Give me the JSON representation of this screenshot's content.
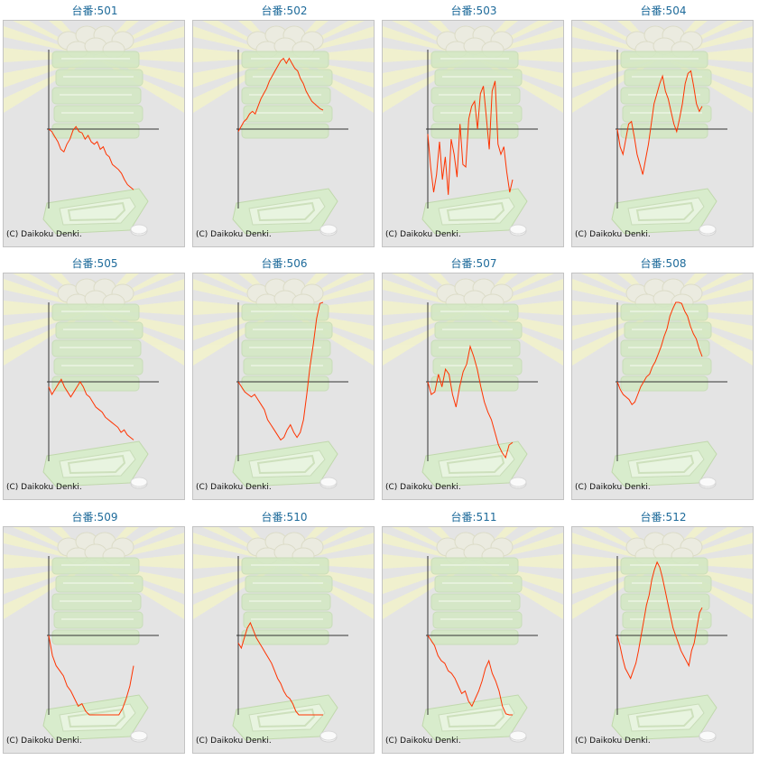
{
  "copyright": "(C) Daikoku Denki.",
  "colors": {
    "title": "#1d6a9a",
    "line": "#ff3300",
    "axis": "#333333",
    "panel": "#e4e4e4"
  },
  "machines": [
    {
      "title": "台番:501",
      "series": [
        0,
        -2,
        -6,
        -10,
        -16,
        -18,
        -12,
        -8,
        -1,
        2,
        -2,
        -3,
        -8,
        -5,
        -10,
        -12,
        -10,
        -16,
        -14,
        -20,
        -22,
        -28,
        -30,
        -32,
        -35,
        -40,
        -44,
        -46,
        -48
      ]
    },
    {
      "title": "台番:502",
      "series": [
        -2,
        2,
        6,
        8,
        12,
        14,
        12,
        18,
        24,
        28,
        32,
        38,
        42,
        46,
        50,
        54,
        56,
        52,
        56,
        52,
        48,
        46,
        40,
        36,
        30,
        26,
        22,
        20,
        18,
        16,
        15
      ]
    },
    {
      "title": "台番:503",
      "series": [
        -4,
        -30,
        -50,
        -36,
        -10,
        -40,
        -22,
        -52,
        -8,
        -20,
        -38,
        4,
        -28,
        -30,
        8,
        18,
        22,
        0,
        28,
        34,
        10,
        -16,
        30,
        38,
        -12,
        -20,
        -14,
        -34,
        -50,
        -40
      ]
    },
    {
      "title": "台番:504",
      "series": [
        0,
        -14,
        -20,
        -8,
        4,
        6,
        -6,
        -20,
        -28,
        -36,
        -24,
        -12,
        4,
        20,
        28,
        36,
        42,
        30,
        24,
        14,
        4,
        -2,
        8,
        20,
        36,
        44,
        46,
        34,
        20,
        14,
        18
      ]
    },
    {
      "title": "台番:505",
      "series": [
        -4,
        -10,
        -6,
        -2,
        2,
        -4,
        -8,
        -12,
        -8,
        -4,
        0,
        -4,
        -10,
        -12,
        -16,
        -20,
        -22,
        -24,
        -28,
        -30,
        -32,
        -34,
        -36,
        -40,
        -38,
        -42,
        -44,
        -46
      ]
    },
    {
      "title": "台番:506",
      "series": [
        0,
        -4,
        -8,
        -10,
        -12,
        -10,
        -14,
        -18,
        -22,
        -30,
        -34,
        -38,
        -42,
        -46,
        -44,
        -38,
        -34,
        -40,
        -44,
        -40,
        -30,
        -10,
        12,
        30,
        50,
        62,
        64
      ]
    },
    {
      "title": "台番:507",
      "series": [
        0,
        -10,
        -8,
        6,
        -4,
        10,
        6,
        -10,
        -20,
        -4,
        8,
        14,
        28,
        20,
        10,
        -4,
        -16,
        -24,
        -30,
        -40,
        -50,
        -56,
        -60,
        -50,
        -48
      ]
    },
    {
      "title": "台番:508",
      "series": [
        0,
        -6,
        -10,
        -12,
        -14,
        -18,
        -16,
        -10,
        -4,
        0,
        4,
        6,
        12,
        16,
        22,
        28,
        36,
        42,
        52,
        58,
        64,
        70,
        62,
        56,
        52,
        44,
        38,
        34,
        26,
        20
      ]
    },
    {
      "title": "台番:509",
      "series": [
        0,
        -16,
        -24,
        -28,
        -32,
        -40,
        -44,
        -50,
        -56,
        -54,
        -60,
        -68,
        -66,
        -72,
        -74,
        -68,
        -78,
        -70,
        -76,
        -66,
        -58,
        -50,
        -40,
        -24
      ]
    },
    {
      "title": "台番:510",
      "series": [
        -6,
        -10,
        -2,
        6,
        10,
        4,
        -2,
        -6,
        -10,
        -14,
        -18,
        -22,
        -28,
        -34,
        -38,
        -44,
        -48,
        -50,
        -54,
        -60,
        -64,
        -66,
        -70,
        -68,
        -72,
        -66,
        -70,
        -74,
        -66
      ]
    },
    {
      "title": "台番:511",
      "series": [
        0,
        -4,
        -8,
        -16,
        -20,
        -22,
        -28,
        -30,
        -34,
        -40,
        -46,
        -44,
        -52,
        -56,
        -50,
        -44,
        -36,
        -26,
        -20,
        -30,
        -36,
        -44,
        -56,
        -62,
        -70,
        -66
      ]
    },
    {
      "title": "台番:512",
      "series": [
        0,
        -8,
        -18,
        -26,
        -30,
        -34,
        -28,
        -22,
        -12,
        0,
        12,
        24,
        32,
        44,
        52,
        58,
        54,
        46,
        36,
        26,
        16,
        6,
        0,
        -6,
        -12,
        -16,
        -20,
        -24,
        -12,
        -6,
        6,
        18,
        22
      ]
    }
  ]
}
